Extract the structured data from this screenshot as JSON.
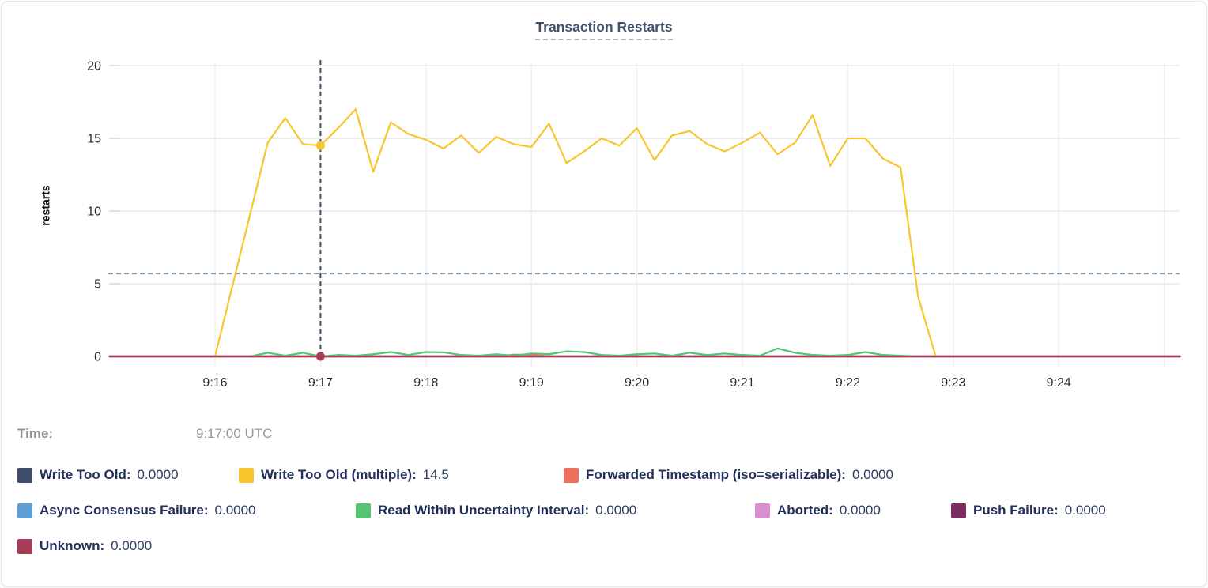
{
  "chart": {
    "title": "Transaction Restarts",
    "ylabel": "restarts"
  },
  "chart_data": {
    "type": "line",
    "title": "Transaction Restarts",
    "xlabel": "",
    "ylabel": "restarts",
    "ylim": [
      0,
      20
    ],
    "y_ticks": [
      0,
      5,
      10,
      15,
      20
    ],
    "x_ticks": [
      "9:16",
      "9:17",
      "9:18",
      "9:19",
      "9:20",
      "9:21",
      "9:22",
      "9:23",
      "9:24"
    ],
    "x_grid_ticks": [
      "9:16",
      "9:17",
      "9:18",
      "9:19",
      "9:20",
      "9:21",
      "9:22",
      "9:23",
      "9:24",
      "9:25"
    ],
    "x_range": [
      "9:15:00",
      "9:25:09"
    ],
    "grid": true,
    "legend_position": "bottom",
    "hover_time": "9:17:00",
    "ref_lines": {
      "horizontal_value": 5.7,
      "vertical_time": "9:17:00"
    },
    "series": [
      {
        "name": "Write Too Old",
        "color": "#3e4e68",
        "points": [
          [
            "9:15:00",
            0
          ],
          [
            "9:25:09",
            0
          ]
        ]
      },
      {
        "name": "Async Consensus Failure",
        "color": "#5b9fd6",
        "points": [
          [
            "9:15:00",
            0
          ],
          [
            "9:25:09",
            0
          ]
        ]
      },
      {
        "name": "Aborted",
        "color": "#da8ed2",
        "points": [
          [
            "9:15:00",
            0
          ],
          [
            "9:25:09",
            0
          ]
        ]
      },
      {
        "name": "Push Failure",
        "color": "#7b2d61",
        "points": [
          [
            "9:15:00",
            0
          ],
          [
            "9:25:09",
            0
          ]
        ]
      },
      {
        "name": "Forwarded Timestamp (iso=serializable)",
        "color": "#ec6f60",
        "points": [
          [
            "9:15:00",
            0
          ],
          [
            "9:18:40",
            0
          ],
          [
            "9:18:50",
            0.12
          ],
          [
            "9:19:00",
            0.12
          ],
          [
            "9:19:10",
            0
          ],
          [
            "9:25:09",
            0
          ]
        ]
      },
      {
        "name": "Read Within Uncertainty Interval",
        "color": "#53c573",
        "points": [
          [
            "9:16:20",
            0
          ],
          [
            "9:16:30",
            0.25
          ],
          [
            "9:16:40",
            0.05
          ],
          [
            "9:16:50",
            0.25
          ],
          [
            "9:17:00",
            0
          ],
          [
            "9:17:10",
            0.1
          ],
          [
            "9:17:20",
            0.05
          ],
          [
            "9:17:30",
            0.15
          ],
          [
            "9:17:40",
            0.3
          ],
          [
            "9:17:50",
            0.1
          ],
          [
            "9:18:00",
            0.3
          ],
          [
            "9:18:10",
            0.28
          ],
          [
            "9:18:20",
            0.1
          ],
          [
            "9:18:30",
            0.05
          ],
          [
            "9:18:40",
            0.15
          ],
          [
            "9:18:50",
            0.05
          ],
          [
            "9:19:00",
            0.2
          ],
          [
            "9:19:10",
            0.15
          ],
          [
            "9:19:20",
            0.35
          ],
          [
            "9:19:30",
            0.3
          ],
          [
            "9:19:40",
            0.1
          ],
          [
            "9:19:50",
            0.05
          ],
          [
            "9:20:00",
            0.15
          ],
          [
            "9:20:10",
            0.2
          ],
          [
            "9:20:20",
            0.05
          ],
          [
            "9:20:30",
            0.25
          ],
          [
            "9:20:40",
            0.1
          ],
          [
            "9:20:50",
            0.2
          ],
          [
            "9:21:00",
            0.1
          ],
          [
            "9:21:10",
            0.05
          ],
          [
            "9:21:20",
            0.55
          ],
          [
            "9:21:30",
            0.25
          ],
          [
            "9:21:40",
            0.1
          ],
          [
            "9:21:50",
            0.05
          ],
          [
            "9:22:00",
            0.1
          ],
          [
            "9:22:10",
            0.3
          ],
          [
            "9:22:20",
            0.1
          ],
          [
            "9:22:30",
            0.05
          ],
          [
            "9:22:40",
            0
          ]
        ]
      },
      {
        "name": "Write Too Old (multiple)",
        "color": "#f9c52f",
        "points": [
          [
            "9:16:00",
            0
          ],
          [
            "9:16:10",
            4.9
          ],
          [
            "9:16:20",
            9.8
          ],
          [
            "9:16:30",
            14.7
          ],
          [
            "9:16:40",
            16.4
          ],
          [
            "9:16:50",
            14.6
          ],
          [
            "9:17:00",
            14.5
          ],
          [
            "9:17:10",
            15.7
          ],
          [
            "9:17:20",
            17.0
          ],
          [
            "9:17:30",
            12.7
          ],
          [
            "9:17:40",
            16.1
          ],
          [
            "9:17:50",
            15.3
          ],
          [
            "9:18:00",
            14.9
          ],
          [
            "9:18:10",
            14.3
          ],
          [
            "9:18:20",
            15.2
          ],
          [
            "9:18:30",
            14.0
          ],
          [
            "9:18:40",
            15.1
          ],
          [
            "9:18:50",
            14.6
          ],
          [
            "9:19:00",
            14.4
          ],
          [
            "9:19:10",
            16.0
          ],
          [
            "9:19:20",
            13.3
          ],
          [
            "9:19:30",
            14.1
          ],
          [
            "9:19:40",
            15.0
          ],
          [
            "9:19:50",
            14.5
          ],
          [
            "9:20:00",
            15.7
          ],
          [
            "9:20:10",
            13.5
          ],
          [
            "9:20:20",
            15.2
          ],
          [
            "9:20:30",
            15.5
          ],
          [
            "9:20:40",
            14.6
          ],
          [
            "9:20:50",
            14.1
          ],
          [
            "9:21:00",
            14.7
          ],
          [
            "9:21:10",
            15.4
          ],
          [
            "9:21:20",
            13.9
          ],
          [
            "9:21:30",
            14.7
          ],
          [
            "9:21:40",
            16.6
          ],
          [
            "9:21:50",
            13.1
          ],
          [
            "9:22:00",
            15.0
          ],
          [
            "9:22:10",
            15.0
          ],
          [
            "9:22:20",
            13.6
          ],
          [
            "9:22:30",
            13.0
          ],
          [
            "9:22:40",
            4.1
          ],
          [
            "9:22:50",
            0
          ]
        ]
      },
      {
        "name": "Unknown",
        "color": "#a43d57",
        "points": [
          [
            "9:15:00",
            0
          ],
          [
            "9:25:09",
            0
          ]
        ]
      }
    ],
    "hover_dots": [
      {
        "series": "Write Too Old (multiple)",
        "time": "9:17:00",
        "value": 14.5
      },
      {
        "series": "Unknown",
        "time": "9:17:00",
        "value": 0
      }
    ]
  },
  "tooltip": {
    "time_label": "Time:",
    "time_value": "9:17:00 UTC",
    "rows": [
      [
        {
          "label": "Write Too Old:",
          "value": "0.0000",
          "color": "#3e4e68"
        },
        {
          "label": "Write Too Old (multiple):",
          "value": "14.5",
          "color": "#f9c52f"
        },
        {
          "label": "Forwarded Timestamp (iso=serializable):",
          "value": "0.0000",
          "color": "#ec6f60"
        }
      ],
      [
        {
          "label": "Async Consensus Failure:",
          "value": "0.0000",
          "color": "#5b9fd6"
        },
        {
          "label": "Read Within Uncertainty Interval:",
          "value": "0.0000",
          "color": "#53c573"
        },
        {
          "label": "Aborted:",
          "value": "0.0000",
          "color": "#da8ed2"
        },
        {
          "label": "Push Failure:",
          "value": "0.0000",
          "color": "#7b2d61"
        }
      ],
      [
        {
          "label": "Unknown:",
          "value": "0.0000",
          "color": "#a43d57"
        }
      ]
    ]
  }
}
